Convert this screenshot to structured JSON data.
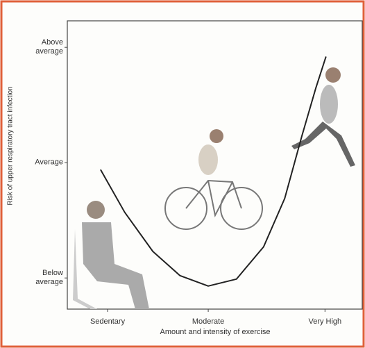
{
  "chart_data": {
    "type": "line",
    "x_label": "Amount and intensity of exercise",
    "y_label": "Risk of upper respiratory tract infection",
    "x": [
      -0.07,
      0.17,
      0.45,
      0.72,
      1.0,
      1.28,
      1.55,
      1.76,
      1.93,
      2.07,
      2.17
    ],
    "values": [
      -0.06,
      -0.43,
      -0.77,
      -0.98,
      -1.07,
      -1.01,
      -0.73,
      -0.31,
      0.23,
      0.65,
      0.92
    ],
    "color": "#222222",
    "xlim": [
      -0.4,
      2.53
    ],
    "ylim": [
      -1.27,
      1.23
    ],
    "xticks": [
      {
        "value": 0,
        "label": "Sedentary"
      },
      {
        "value": 1,
        "label": "Moderate"
      },
      {
        "value": 2.16,
        "label": "Very High"
      }
    ],
    "yticks": [
      {
        "value": -1,
        "label": "Below average"
      },
      {
        "value": 0,
        "label": "Average"
      },
      {
        "value": 1,
        "label": "Above average"
      }
    ]
  }
}
